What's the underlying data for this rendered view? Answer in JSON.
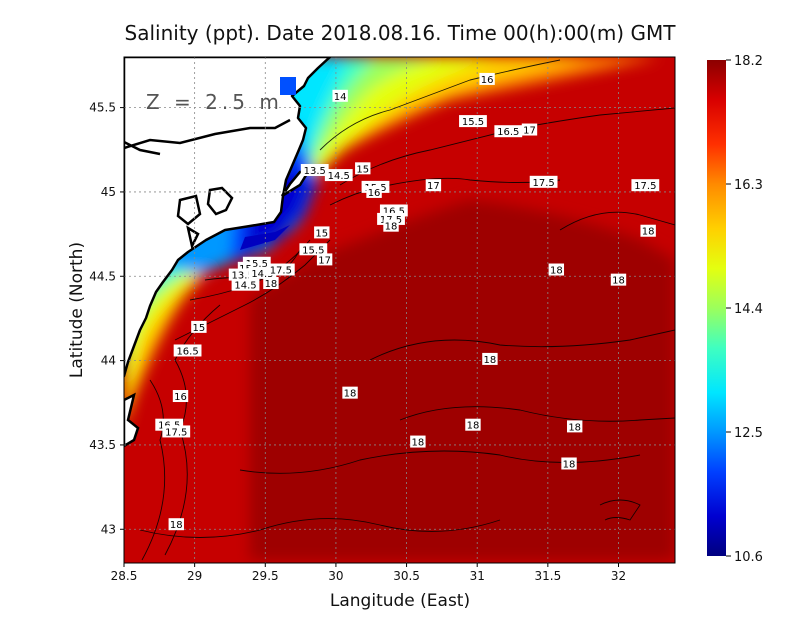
{
  "chart_data": {
    "type": "heatmap",
    "title": "Salinity (ppt). Date 2018.08.16. Time 00(h):00(m) GMT",
    "depth_label": "Z = 2.5 m",
    "xlabel": "Langitude (East)",
    "ylabel": "Latitude (North)",
    "xlim": [
      28.5,
      32.4
    ],
    "ylim": [
      42.8,
      45.8
    ],
    "x_ticks": [
      28.5,
      29,
      29.5,
      30,
      30.5,
      31,
      31.5,
      32
    ],
    "x_tick_labels": [
      "28.5",
      "29",
      "29.5",
      "30",
      "30.5",
      "31",
      "31.5",
      "32"
    ],
    "y_ticks": [
      43,
      43.5,
      44,
      44.5,
      45,
      45.5
    ],
    "y_tick_labels": [
      "43",
      "43.5",
      "44",
      "44.5",
      "45",
      "45.5"
    ],
    "grid": true,
    "colorbar": {
      "min": 10.6,
      "max": 18.2,
      "tick_values": [
        18.2,
        16.3,
        14.4,
        12.5,
        10.6
      ],
      "tick_labels": [
        "18.2",
        "16.3",
        "14.4",
        "12.5",
        "10.6"
      ],
      "colors": [
        "#00007f",
        "#0000d0",
        "#0040ff",
        "#0098ff",
        "#00e6ff",
        "#40ffc0",
        "#9cff5c",
        "#e4ff10",
        "#ffd000",
        "#ff8a00",
        "#ff3000",
        "#d80000",
        "#8c0000"
      ]
    },
    "contour_labels": [
      {
        "lon": 30.03,
        "lat": 45.57,
        "text": "14"
      },
      {
        "lon": 31.07,
        "lat": 45.67,
        "text": "16"
      },
      {
        "lon": 29.85,
        "lat": 45.13,
        "text": "13.5"
      },
      {
        "lon": 30.02,
        "lat": 45.1,
        "text": "14.5"
      },
      {
        "lon": 30.19,
        "lat": 45.14,
        "text": "15"
      },
      {
        "lon": 30.97,
        "lat": 45.42,
        "text": "15.5"
      },
      {
        "lon": 31.22,
        "lat": 45.36,
        "text": "16.5"
      },
      {
        "lon": 31.37,
        "lat": 45.37,
        "text": "17"
      },
      {
        "lon": 30.28,
        "lat": 45.03,
        "text": "15.5"
      },
      {
        "lon": 30.27,
        "lat": 45.0,
        "text": "16"
      },
      {
        "lon": 30.69,
        "lat": 45.04,
        "text": "17"
      },
      {
        "lon": 31.47,
        "lat": 45.06,
        "text": "17.5"
      },
      {
        "lon": 32.19,
        "lat": 45.04,
        "text": "17.5"
      },
      {
        "lon": 30.41,
        "lat": 44.89,
        "text": "16.5"
      },
      {
        "lon": 30.39,
        "lat": 44.84,
        "text": "17.5"
      },
      {
        "lon": 30.39,
        "lat": 44.8,
        "text": "18"
      },
      {
        "lon": 29.9,
        "lat": 44.76,
        "text": "15"
      },
      {
        "lon": 29.84,
        "lat": 44.66,
        "text": "15.5"
      },
      {
        "lon": 29.92,
        "lat": 44.6,
        "text": "17"
      },
      {
        "lon": 29.44,
        "lat": 44.58,
        "text": "15.5"
      },
      {
        "lon": 29.36,
        "lat": 44.55,
        "text": "15"
      },
      {
        "lon": 29.34,
        "lat": 44.51,
        "text": "13.5"
      },
      {
        "lon": 29.48,
        "lat": 44.52,
        "text": "14.5"
      },
      {
        "lon": 29.61,
        "lat": 44.54,
        "text": "17.5"
      },
      {
        "lon": 29.36,
        "lat": 44.45,
        "text": "14.5"
      },
      {
        "lon": 29.54,
        "lat": 44.46,
        "text": "18"
      },
      {
        "lon": 32.21,
        "lat": 44.77,
        "text": "18"
      },
      {
        "lon": 31.56,
        "lat": 44.54,
        "text": "18"
      },
      {
        "lon": 32.0,
        "lat": 44.48,
        "text": "18"
      },
      {
        "lon": 29.03,
        "lat": 44.2,
        "text": "15"
      },
      {
        "lon": 28.95,
        "lat": 44.06,
        "text": "16.5"
      },
      {
        "lon": 31.09,
        "lat": 44.01,
        "text": "18"
      },
      {
        "lon": 28.9,
        "lat": 43.79,
        "text": "16"
      },
      {
        "lon": 30.1,
        "lat": 43.81,
        "text": "18"
      },
      {
        "lon": 28.82,
        "lat": 43.62,
        "text": "16.5"
      },
      {
        "lon": 28.87,
        "lat": 43.58,
        "text": "17.5"
      },
      {
        "lon": 30.97,
        "lat": 43.62,
        "text": "18"
      },
      {
        "lon": 31.69,
        "lat": 43.61,
        "text": "18"
      },
      {
        "lon": 30.58,
        "lat": 43.52,
        "text": "18"
      },
      {
        "lon": 31.65,
        "lat": 43.39,
        "text": "18"
      },
      {
        "lon": 28.87,
        "lat": 43.03,
        "text": "18"
      }
    ]
  }
}
